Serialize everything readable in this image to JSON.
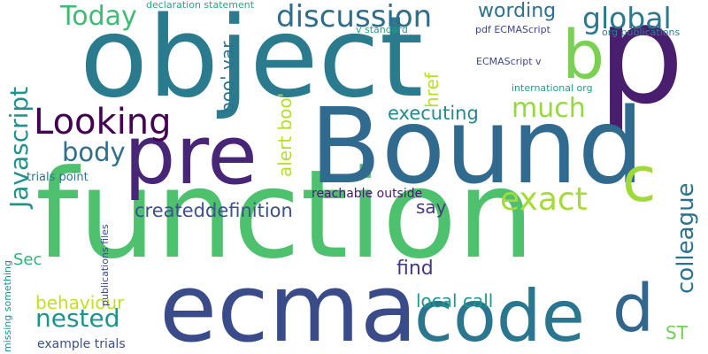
{
  "words": [
    {
      "text": "function",
      "color": "#4ec16e"
    },
    {
      "text": "object",
      "color": "#2b7b8e"
    },
    {
      "text": "p",
      "color": "#4a1e6e"
    },
    {
      "text": "Bound",
      "color": "#306a8e"
    },
    {
      "text": "ecma",
      "color": "#3a4b8a"
    },
    {
      "text": "pre",
      "color": "#482677"
    },
    {
      "text": "code",
      "color": "#2a768e"
    },
    {
      "text": "b",
      "color": "#7ad151"
    },
    {
      "text": "d",
      "color": "#31668d"
    },
    {
      "text": "c",
      "color": "#9fda3a"
    },
    {
      "text": "Looking",
      "color": "#440154"
    },
    {
      "text": "discussion",
      "color": "#2f6c8e"
    },
    {
      "text": "global",
      "color": "#2a788e"
    },
    {
      "text": "Javascript",
      "color": "#21918c"
    },
    {
      "text": "Today",
      "color": "#3dbc74"
    },
    {
      "text": "exact",
      "color": "#a5db36"
    },
    {
      "text": "colleague",
      "color": "#2c728e"
    },
    {
      "text": "much",
      "color": "#95d840"
    },
    {
      "text": "body",
      "color": "#2e6e8e"
    },
    {
      "text": "nested",
      "color": "#20928c"
    },
    {
      "text": "wording",
      "color": "#2d708e"
    },
    {
      "text": "executing",
      "color": "#238a8d"
    },
    {
      "text": "createddefinition",
      "color": "#3b518b"
    },
    {
      "text": "href",
      "color": "#b8de29"
    },
    {
      "text": "alert boo'",
      "color": "#b5de2b"
    },
    {
      "text": "boo' var",
      "color": "#2c738e"
    },
    {
      "text": "behaviour",
      "color": "#c2df23"
    },
    {
      "text": "local call",
      "color": "#1f988b"
    },
    {
      "text": "find",
      "color": "#443983"
    },
    {
      "text": "say",
      "color": "#443a83"
    },
    {
      "text": "Sec",
      "color": "#2eb37c"
    },
    {
      "text": "ST",
      "color": "#73d056"
    },
    {
      "text": "example trials",
      "color": "#3c4f8a"
    },
    {
      "text": "reachable outside",
      "color": "#481c6e"
    },
    {
      "text": "trials point",
      "color": "#2b758e"
    },
    {
      "text": "publications files",
      "color": "#3e4989"
    },
    {
      "text": "missing something",
      "color": "#218f8d"
    },
    {
      "text": "declaration statement",
      "color": "#21a685"
    },
    {
      "text": "v standard",
      "color": "#1fa187"
    },
    {
      "text": "pdf ECMAScript",
      "color": "#404688"
    },
    {
      "text": "org publications",
      "color": "#26828e"
    },
    {
      "text": "ECMAScript v",
      "color": "#3e4a89"
    },
    {
      "text": "international org",
      "color": "#1f9e89"
    }
  ]
}
